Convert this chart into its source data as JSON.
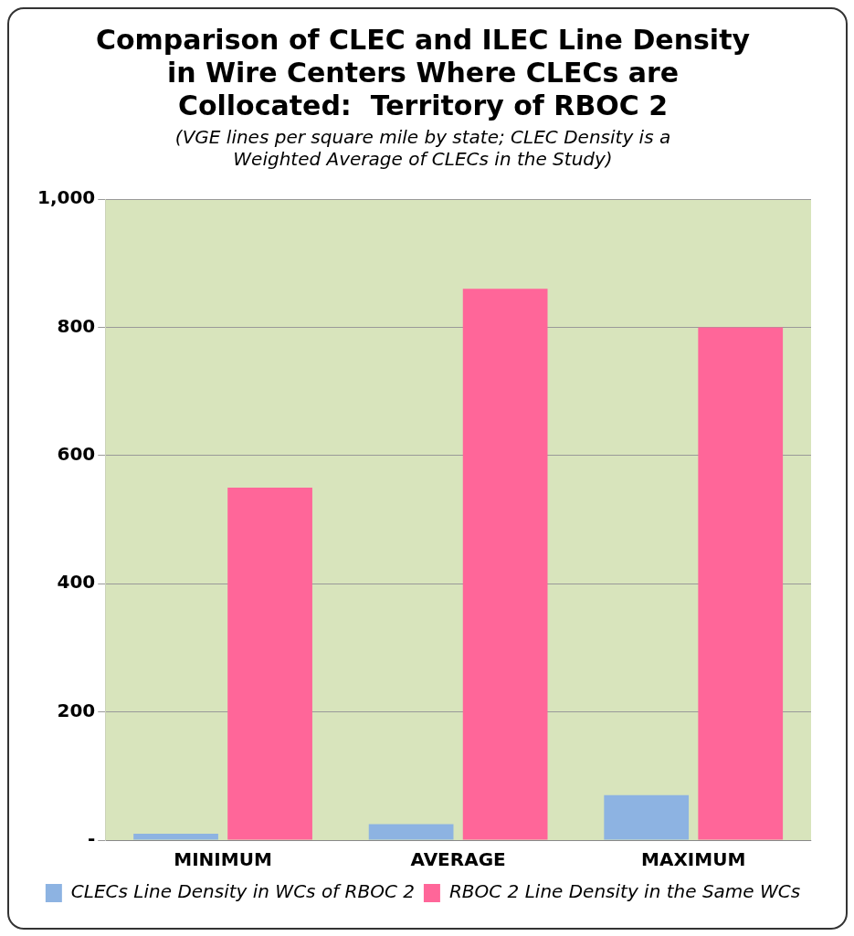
{
  "chart_data": {
    "type": "bar",
    "title": "Comparison of CLEC and ILEC Line Density in Wire Centers Where CLECs are Collocated:  Territory of RBOC 2",
    "subtitle": "(VGE lines per square mile by state; CLEC Density is a Weighted Average of CLECs in the Study)",
    "categories": [
      "MINIMUM",
      "AVERAGE",
      "MAXIMUM"
    ],
    "series": [
      {
        "name": "CLECs Line Density in WCs of RBOC 2",
        "color": "#8db3e2",
        "values": [
          10,
          25,
          70
        ]
      },
      {
        "name": "RBOC 2 Line Density in the Same WCs",
        "color": "#ff6699",
        "values": [
          550,
          860,
          800
        ]
      }
    ],
    "ylim": [
      0,
      1000
    ],
    "yticks": [
      {
        "value": 0,
        "label": "-"
      },
      200,
      400,
      600,
      800,
      {
        "value": 1000,
        "label": "1,000"
      }
    ],
    "grid": "y",
    "legend": "bottom"
  }
}
